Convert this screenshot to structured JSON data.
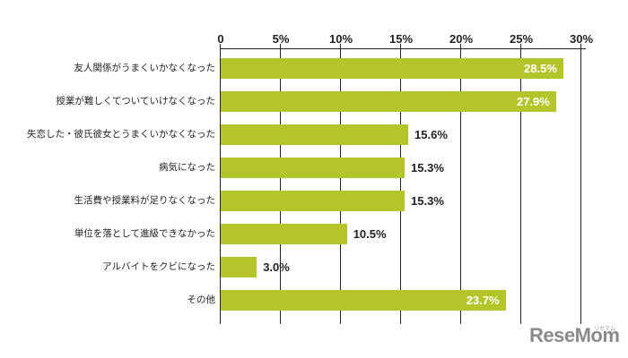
{
  "chart_data": {
    "type": "bar",
    "orientation": "horizontal",
    "title": "",
    "xlabel": "",
    "ylabel": "",
    "xlim": [
      0,
      30
    ],
    "x_ticks": [
      "0",
      "5%",
      "10%",
      "15%",
      "20%",
      "25%",
      "30%"
    ],
    "x_tick_values": [
      0,
      5,
      10,
      15,
      20,
      25,
      30
    ],
    "grid": true,
    "bar_color": "#b3c52b",
    "categories": [
      "友人関係がうまくいかなくなった",
      "授業が難しくてついていけなくなった",
      "失恋した・彼氏彼女とうまくいかなくなった",
      "病気になった",
      "生活費や授業料が足りなくなった",
      "単位を落として進級できなかった",
      "アルバイトをクビになった",
      "その他"
    ],
    "values": [
      28.5,
      27.9,
      15.6,
      15.3,
      15.3,
      10.5,
      3.0,
      23.7
    ],
    "value_labels": [
      "28.5%",
      "27.9%",
      "15.6%",
      "15.3%",
      "15.3%",
      "10.5%",
      "3.0%",
      "23.7%"
    ],
    "label_inside": [
      true,
      true,
      false,
      false,
      false,
      false,
      false,
      true
    ]
  },
  "watermark": {
    "text": "ReseMom",
    "small_text": "リセマム"
  }
}
